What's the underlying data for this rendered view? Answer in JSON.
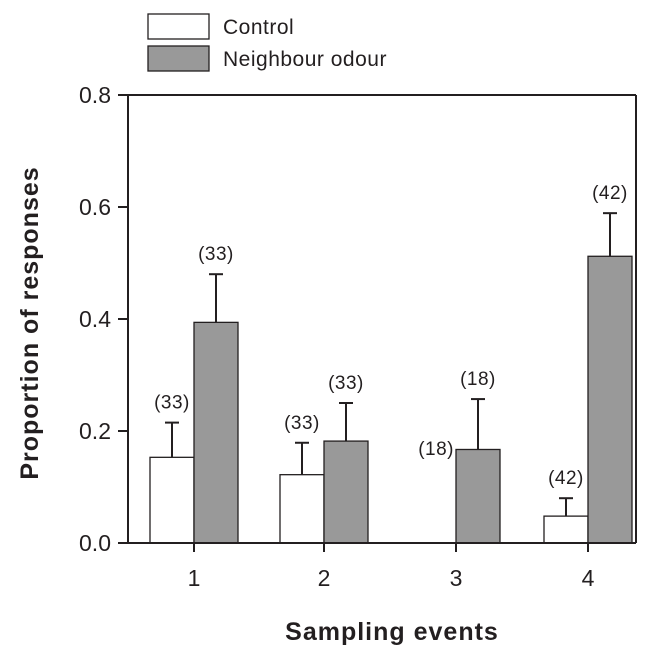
{
  "chart_data": {
    "type": "bar",
    "categories": [
      "1",
      "2",
      "3",
      "4"
    ],
    "series": [
      {
        "name": "Control",
        "color": "#ffffff",
        "values": [
          0.153,
          0.122,
          0.0,
          0.048
        ],
        "errors": [
          0.062,
          0.057,
          0.0,
          0.032
        ],
        "n_labels": [
          "(33)",
          "(33)",
          "(18)",
          "(42)"
        ]
      },
      {
        "name": "Neighbour odour",
        "color": "#999999",
        "values": [
          0.394,
          0.182,
          0.167,
          0.512
        ],
        "errors": [
          0.086,
          0.068,
          0.09,
          0.077
        ],
        "n_labels": [
          "(33)",
          "(33)",
          "(18)",
          "(42)"
        ]
      }
    ],
    "xlabel": "Sampling events",
    "ylabel": "Proportion of responses",
    "ylim": [
      0,
      0.8
    ],
    "yticks": [
      "0.0",
      "0.2",
      "0.4",
      "0.6",
      "0.8"
    ],
    "legend_position": "top-left",
    "grid": false
  }
}
